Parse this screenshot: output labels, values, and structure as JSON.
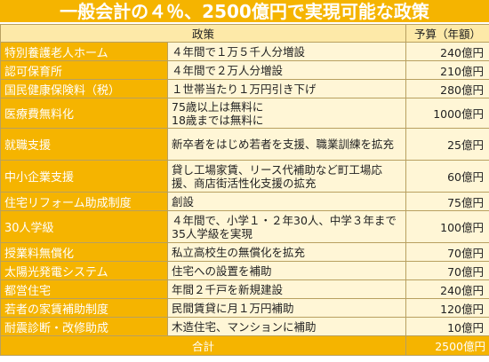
{
  "title": "一般会計の４％、2500億円で実現可能な政策",
  "header": {
    "policy": "政策",
    "budget": "予算（年額）"
  },
  "rows": [
    {
      "category": "特別養護老人ホーム",
      "description": "４年間で１万５千人分増設",
      "budget": "240億円"
    },
    {
      "category": "認可保育所",
      "description": "４年間で２万人分増設",
      "budget": "210億円"
    },
    {
      "category": "国民健康保険料（税）",
      "description": "１世帯当たり１万円引き下げ",
      "budget": "280億円"
    },
    {
      "category": "医療費無料化",
      "description": "75歳以上は無料に\n18歳までは無料に",
      "budget": "1000億円"
    },
    {
      "category": "就職支援",
      "description": "新卒者をはじめ若者を支援、職業訓練を拡充",
      "budget": "25億円"
    },
    {
      "category": "中小企業支援",
      "description": "貸し工場家賃、リース代補助など町工場応援、商店街活性化支援の拡充",
      "budget": "60億円"
    },
    {
      "category": "住宅リフォーム助成制度",
      "description": "創設",
      "budget": "75億円"
    },
    {
      "category": "30人学級",
      "description": "４年間で、小学１・２年30人、中学３年まで35人学級を実現",
      "budget": "100億円"
    },
    {
      "category": "授業料無償化",
      "description": "私立高校生の無償化を拡充",
      "budget": "70億円"
    },
    {
      "category": "太陽光発電システム",
      "description": "住宅への設置を補助",
      "budget": "70億円"
    },
    {
      "category": "都営住宅",
      "description": "年間２千戸を新規建設",
      "budget": "240億円"
    },
    {
      "category": "若者の家賃補助制度",
      "description": "民間賃貸に月１万円補助",
      "budget": "120億円"
    },
    {
      "category": "耐震診断・改修助成",
      "description": "木造住宅、マンションに補助",
      "budget": "10億円"
    }
  ],
  "total": {
    "label": "合計",
    "budget": "2500億円"
  },
  "colors": {
    "accent": "#f5b400",
    "cell": "#fff6d6",
    "header": "#fde9a8"
  }
}
